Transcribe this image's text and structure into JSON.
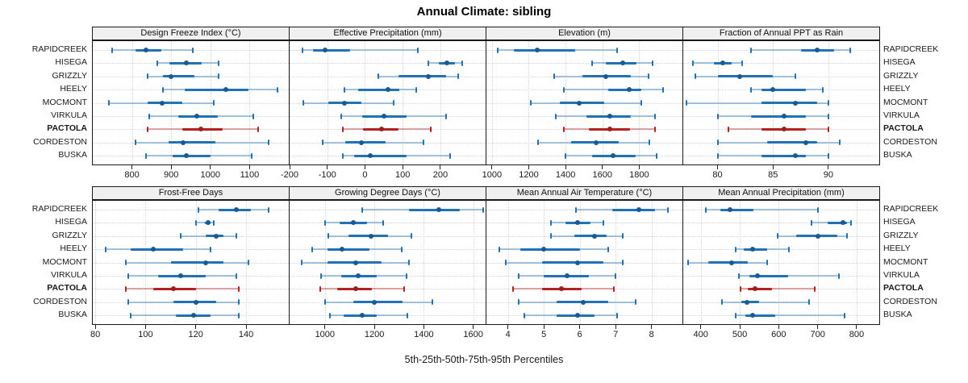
{
  "title": "Annual Climate: sibling",
  "caption": "5th-25th-50th-75th-95th Percentiles",
  "highlight_station": "PACTOLA",
  "colors": {
    "series_blue": "#2171B5",
    "series_blue_light": "rgba(33,113,181,0.4)",
    "series_blue_dot": "#1A5A94",
    "highlight_red": "#B22222",
    "highlight_red_light": "rgba(178,34,34,0.4)",
    "highlight_red_dot": "#9E1D1D",
    "gridline": "#D4D4D4",
    "strip_background": "#F0F0F0",
    "panel_border": "#1A1A1A"
  },
  "chart_data": {
    "type": "scatter",
    "subtype": "dot-and-interval (5th-25th-50th-75th-95th percentile ranges)",
    "stations": [
      "RAPIDCREEK",
      "HISEGA",
      "GRIZZLY",
      "HEELY",
      "MOCMONT",
      "VIRKULA",
      "PACTOLA",
      "CORDESTON",
      "BUSKA"
    ],
    "percentiles": [
      5,
      25,
      50,
      75,
      95
    ],
    "panels": [
      {
        "title": "Design Freeze Index (°C)",
        "row": 0,
        "ticks": [
          800,
          900,
          1000,
          1100
        ],
        "domain": [
          700,
          1200
        ],
        "series": [
          [
            750,
            810,
            835,
            875,
            955
          ],
          [
            865,
            895,
            938,
            978,
            1020
          ],
          [
            840,
            880,
            900,
            960,
            1022
          ],
          [
            878,
            935,
            1040,
            1098,
            1172
          ],
          [
            742,
            840,
            876,
            928,
            1008
          ],
          [
            845,
            918,
            965,
            1018,
            1110
          ],
          [
            840,
            928,
            975,
            1032,
            1122
          ],
          [
            810,
            893,
            930,
            1012,
            1148
          ],
          [
            835,
            903,
            938,
            1000,
            1105
          ]
        ]
      },
      {
        "title": "Effective Precipitation (mm)",
        "row": 0,
        "ticks": [
          -200,
          -100,
          0,
          100,
          200
        ],
        "domain": [
          -200,
          320
        ],
        "series": [
          [
            -165,
            -138,
            -105,
            -40,
            140
          ],
          [
            168,
            195,
            218,
            238,
            258
          ],
          [
            35,
            88,
            168,
            215,
            248
          ],
          [
            -55,
            -18,
            60,
            92,
            135
          ],
          [
            -163,
            -98,
            -55,
            -10,
            75
          ],
          [
            -62,
            -8,
            50,
            110,
            215
          ],
          [
            -58,
            -5,
            45,
            88,
            175
          ],
          [
            -113,
            -53,
            -10,
            55,
            155
          ],
          [
            -58,
            -28,
            15,
            110,
            225
          ]
        ]
      },
      {
        "title": "Elevation (m)",
        "row": 0,
        "ticks": [
          1000,
          1200,
          1400,
          1600,
          1800
        ],
        "domain": [
          970,
          2035
        ],
        "series": [
          [
            1030,
            1120,
            1245,
            1450,
            1680
          ],
          [
            1545,
            1620,
            1710,
            1785,
            1875
          ],
          [
            1340,
            1490,
            1620,
            1755,
            1850
          ],
          [
            1390,
            1630,
            1745,
            1810,
            1930
          ],
          [
            1210,
            1370,
            1475,
            1610,
            1810
          ],
          [
            1345,
            1515,
            1640,
            1755,
            1885
          ],
          [
            1390,
            1525,
            1640,
            1750,
            1885
          ],
          [
            1250,
            1430,
            1565,
            1690,
            1855
          ],
          [
            1400,
            1545,
            1660,
            1780,
            1895
          ]
        ]
      },
      {
        "title": "Fraction of Annual PPT as Rain",
        "row": 0,
        "ticks": [
          80,
          85,
          90
        ],
        "domain": [
          76.9,
          94.6
        ],
        "series": [
          [
            83,
            87.5,
            89,
            90.5,
            92
          ],
          [
            77.8,
            79.7,
            80.5,
            81.3,
            82.2
          ],
          [
            78,
            80,
            82,
            85,
            87
          ],
          [
            83,
            84,
            85,
            88,
            89.5
          ],
          [
            77.2,
            84,
            87,
            89,
            90
          ],
          [
            80,
            83,
            86,
            88,
            90
          ],
          [
            81,
            84,
            86,
            88,
            90
          ],
          [
            80,
            84.5,
            88,
            89,
            91
          ],
          [
            80,
            84,
            87,
            88,
            90
          ]
        ]
      },
      {
        "title": "Frost-Free Days",
        "row": 1,
        "ticks": [
          80,
          100,
          120,
          140
        ],
        "domain": [
          79,
          157
        ],
        "series": [
          [
            121,
            129,
            136,
            142,
            149
          ],
          [
            120,
            123.5,
            125,
            126,
            127
          ],
          [
            114,
            124,
            128,
            131,
            136
          ],
          [
            84,
            94,
            103,
            115,
            126
          ],
          [
            92,
            110,
            124,
            131,
            141
          ],
          [
            93,
            105,
            114,
            124,
            136
          ],
          [
            92,
            103,
            111,
            120,
            137
          ],
          [
            93,
            111,
            120,
            128,
            137
          ],
          [
            94,
            112,
            119,
            126,
            137
          ]
        ]
      },
      {
        "title": "Growing Degree Days (°C)",
        "row": 1,
        "ticks": [
          1000,
          1200,
          1400,
          1600
        ],
        "domain": [
          857,
          1650
        ],
        "series": [
          [
            1150,
            1340,
            1460,
            1545,
            1640
          ],
          [
            1000,
            1060,
            1115,
            1170,
            1235
          ],
          [
            1015,
            1095,
            1185,
            1255,
            1350
          ],
          [
            950,
            1010,
            1070,
            1180,
            1310
          ],
          [
            905,
            1010,
            1125,
            1230,
            1340
          ],
          [
            985,
            1065,
            1135,
            1210,
            1330
          ],
          [
            980,
            1050,
            1125,
            1190,
            1320
          ],
          [
            1000,
            1115,
            1200,
            1315,
            1435
          ],
          [
            1020,
            1075,
            1150,
            1210,
            1335
          ]
        ]
      },
      {
        "title": "Mean Annual Air Temperature (°C)",
        "row": 1,
        "ticks": [
          4,
          5,
          6,
          7,
          8
        ],
        "domain": [
          3.4,
          8.86
        ],
        "series": [
          [
            5.9,
            6.9,
            7.65,
            8.1,
            8.45
          ],
          [
            5.2,
            5.6,
            5.95,
            6.3,
            6.65
          ],
          [
            5.2,
            5.85,
            6.4,
            6.75,
            7.2
          ],
          [
            3.75,
            4.35,
            5.0,
            6.0,
            6.8
          ],
          [
            3.95,
            4.95,
            5.95,
            6.65,
            7.2
          ],
          [
            4.3,
            5.0,
            5.65,
            6.25,
            7.0
          ],
          [
            4.15,
            4.95,
            5.5,
            6.05,
            6.95
          ],
          [
            4.3,
            5.35,
            6.1,
            6.8,
            7.55
          ],
          [
            4.45,
            5.35,
            5.95,
            6.4,
            7.05
          ]
        ]
      },
      {
        "title": "Mean Annual Precipitation (mm)",
        "row": 1,
        "ticks": [
          400,
          500,
          600,
          700,
          800
        ],
        "domain": [
          355,
          858
        ],
        "series": [
          [
            413,
            450,
            475,
            535,
            700
          ],
          [
            685,
            725,
            765,
            775,
            785
          ],
          [
            597,
            645,
            700,
            750,
            775
          ],
          [
            490,
            510,
            533,
            570,
            627
          ],
          [
            368,
            420,
            480,
            520,
            570
          ],
          [
            498,
            525,
            545,
            625,
            755
          ],
          [
            502,
            520,
            540,
            582,
            692
          ],
          [
            455,
            505,
            518,
            550,
            678
          ],
          [
            490,
            515,
            533,
            592,
            768
          ]
        ]
      }
    ]
  }
}
